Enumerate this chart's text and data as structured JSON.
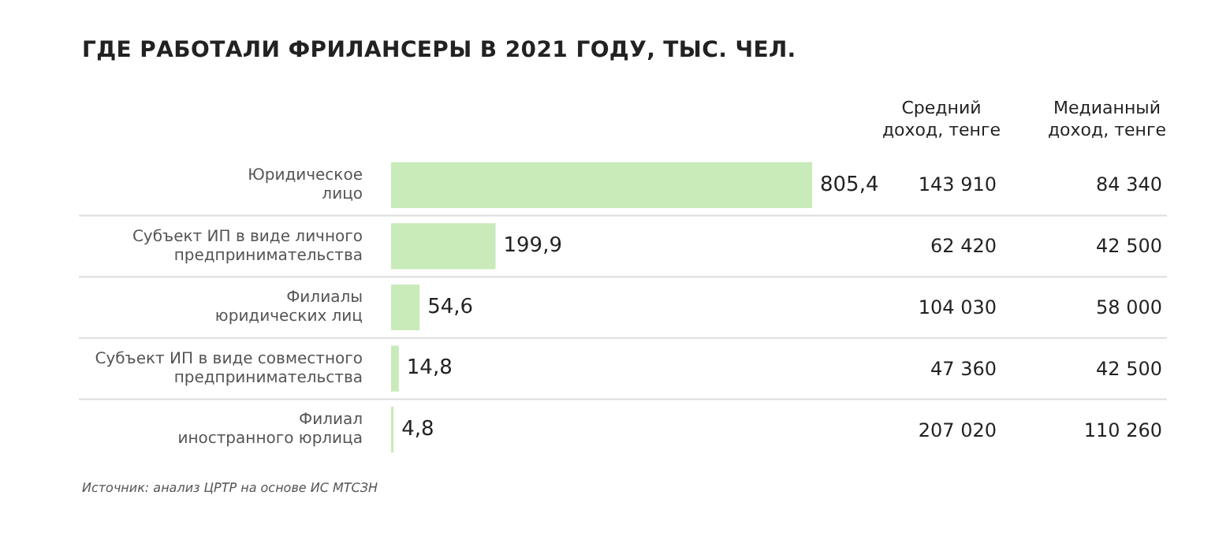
{
  "chart_data": [
    {
      "type": "bar",
      "orientation": "horizontal",
      "title": "ГДЕ РАБОТАЛИ ФРИЛАНСЕРЫ В 2021 ГОДУ, ТЫС. ЧЕЛ.",
      "categories": [
        "Юридическое лицо",
        "Субъект ИП в виде личного предпринимательства",
        "Филиалы юридических лиц",
        "Субъект ИП в виде совместного предпринимательства",
        "Филиал иностранного юрлица"
      ],
      "values": [
        805.4,
        199.9,
        54.6,
        14.8,
        4.8
      ],
      "value_labels": [
        "805,4",
        "199,9",
        "54,6",
        "14,8",
        "4,8"
      ],
      "color": "#c8ebb9",
      "tick_labels": "y",
      "legend": false,
      "annotations": [
        "Источник: анализ ЦРТР на основе ИС МТСЗН"
      ]
    },
    {
      "type": "other",
      "title": "Средний доход, тенге",
      "annotations": [
        "143 910",
        "62 420",
        "104 030",
        "47 360",
        "207 020"
      ]
    },
    {
      "type": "other",
      "title": "Медианный доход, тенге",
      "annotations": [
        "84 340",
        "42 500",
        "58 000",
        "42 500",
        "110 260"
      ]
    }
  ]
}
